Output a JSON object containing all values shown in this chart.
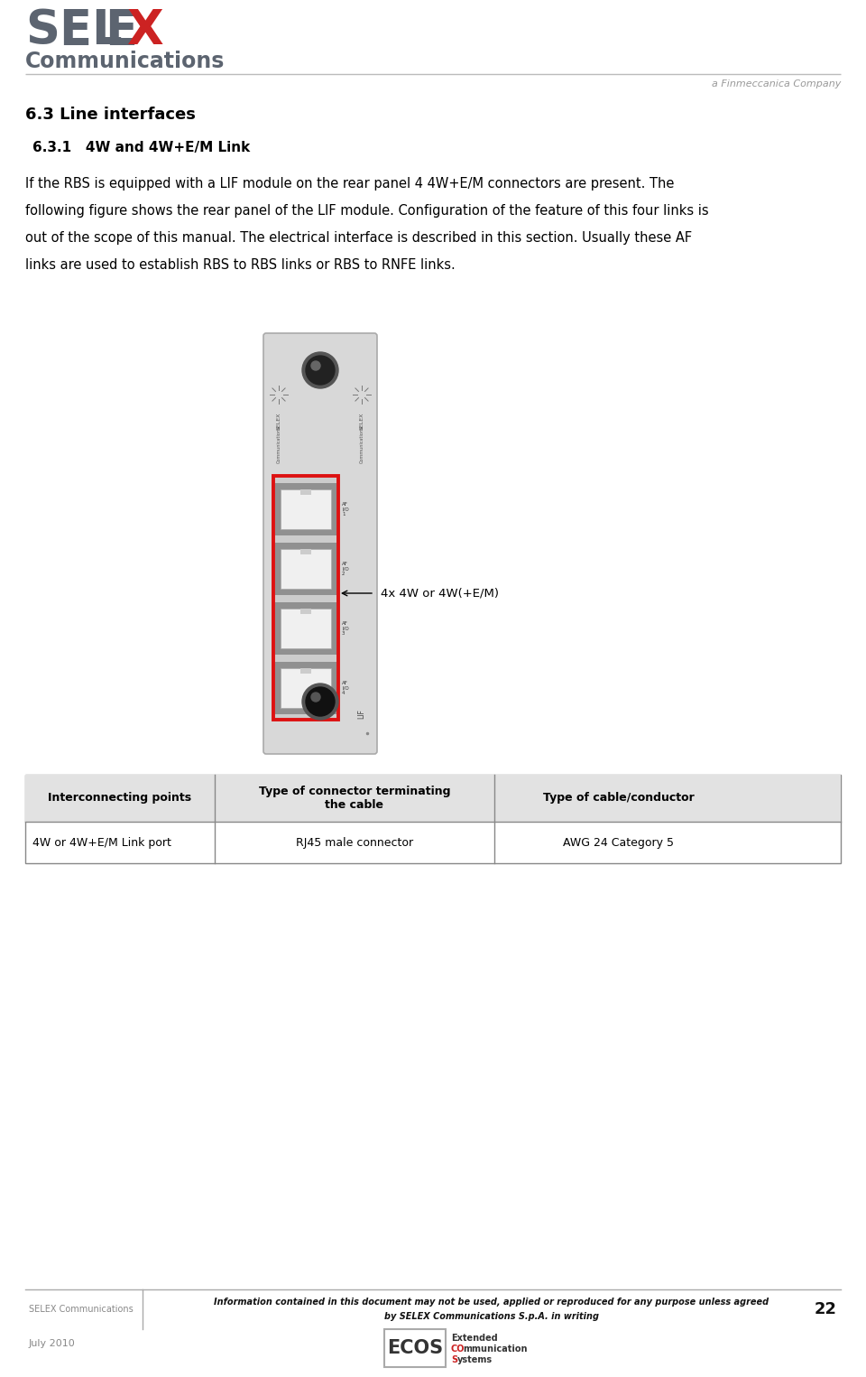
{
  "title_main": "6.3 Line interfaces",
  "section_title": "6.3.1   4W and 4W+E/M Link",
  "body_line1": "If the RBS is equipped with a LIF module on the rear panel 4 4W+E/M connectors are present. The",
  "body_line2": "following figure shows the rear panel of the LIF module. Configuration of the feature of this four links is",
  "body_line3": "out of the scope of this manual. The electrical interface is described in this section. Usually these AF",
  "body_line4": "links are used to establish RBS to RBS links or RBS to RNFE links.",
  "annotation_text": "4x 4W or 4W(+E/M)",
  "table_headers": [
    "Interconnecting points",
    "Type of connector terminating\nthe cable",
    "Type of cable/conductor"
  ],
  "table_row": [
    "4W or 4W+E/M Link port",
    "RJ45 male connector",
    "AWG 24 Category 5"
  ],
  "selex_color": "#5c6470",
  "x_color": "#cc2222",
  "bg_color": "#ffffff",
  "footer_text_left": "SELEX Communications",
  "footer_disclaimer_line1": "Information contained in this document may not be used, applied or reproduced for any purpose unless agreed",
  "footer_disclaimer_line2": "by SELEX Communications S.p.A. in writing",
  "footer_page": "22",
  "footer_date": "July 2010",
  "finmeccanica_text": "a Finmeccanica Company",
  "ecos_text_lines": [
    "Extended",
    "COmmunication",
    "Systems"
  ],
  "panel_bg": "#d8d8d8",
  "panel_edge": "#aaaaaa",
  "port_white": "#f0f0f0",
  "port_dark": "#888888",
  "red_rect": "#dd1111"
}
